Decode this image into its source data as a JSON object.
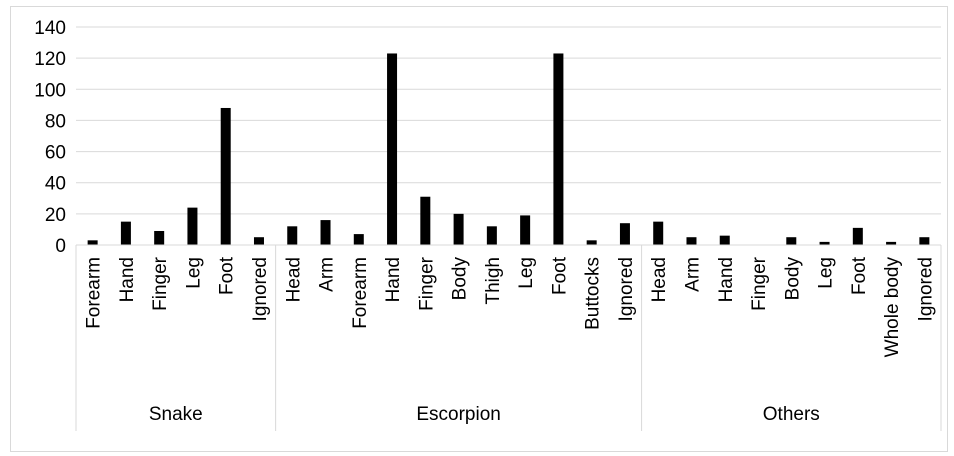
{
  "chart_data": {
    "type": "bar",
    "title": "",
    "xlabel": "",
    "ylabel": "",
    "ylim": [
      0,
      140
    ],
    "yticks": [
      0,
      20,
      40,
      60,
      80,
      100,
      120,
      140
    ],
    "grid": true,
    "legend": "none",
    "bar_color": "#000000",
    "groups": [
      {
        "name": "Snake",
        "categories": [
          "Forearm",
          "Hand",
          "Finger",
          "Leg",
          "Foot",
          "Ignored"
        ],
        "values": [
          3,
          15,
          9,
          24,
          88,
          5
        ]
      },
      {
        "name": "Escorpion",
        "categories": [
          "Head",
          "Arm",
          "Forearm",
          "Hand",
          "Finger",
          "Body",
          "Thigh",
          "Leg",
          "Foot",
          "Buttocks",
          "Ignored"
        ],
        "values": [
          12,
          16,
          7,
          123,
          31,
          20,
          12,
          19,
          123,
          3,
          14
        ]
      },
      {
        "name": "Others",
        "categories": [
          "Head",
          "Arm",
          "Hand",
          "Finger",
          "Body",
          "Leg",
          "Foot",
          "Whole body",
          "Ignored"
        ],
        "values": [
          15,
          5,
          6,
          0,
          5,
          2,
          11,
          2,
          5
        ]
      }
    ]
  }
}
